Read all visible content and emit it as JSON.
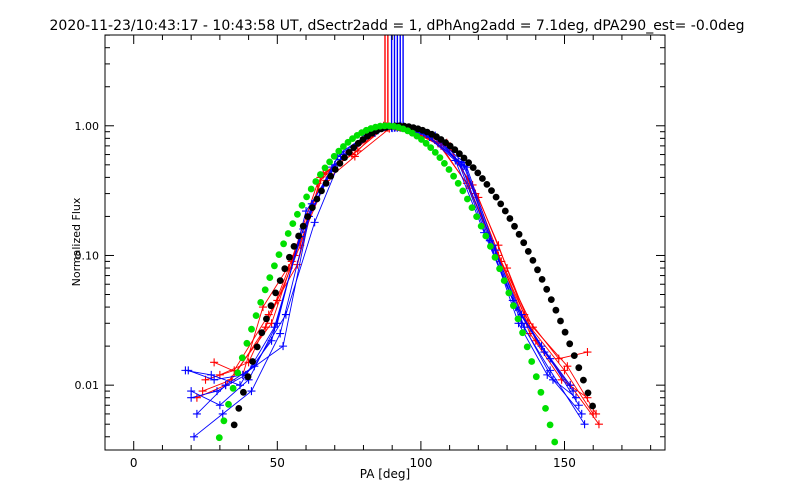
{
  "chart_data": {
    "type": "scatter",
    "title": "2020-11-23/10:43:17 - 10:43:58 UT, dSectr2add = 1, dPhAng2add = 7.1deg, dPA290_est= -0.0deg",
    "xlabel": "PA [deg]",
    "ylabel": "Normalized Flux",
    "xlim": [
      -10,
      185
    ],
    "ylim_log10": [
      -2.5,
      0.7
    ],
    "x_ticks": [
      0,
      50,
      100,
      150
    ],
    "x_tick_labels": [
      "0",
      "50",
      "100",
      "150"
    ],
    "y_ticks": [
      0.01,
      0.1,
      1.0
    ],
    "y_tick_labels": [
      "0.01",
      "0.10",
      "1.00"
    ],
    "grid": false,
    "legend": "none",
    "colors": {
      "red": "#ff0000",
      "blue": "#0000ff",
      "green_fit": "#00e000",
      "black_fit": "#000000"
    },
    "vertical_lines": [
      {
        "x": 87.5,
        "color": "#ff0000"
      },
      {
        "x": 88.5,
        "color": "#ff0000"
      },
      {
        "x": 89.8,
        "color": "#0000ff"
      },
      {
        "x": 90.8,
        "color": "#0000ff"
      },
      {
        "x": 91.8,
        "color": "#0000ff"
      },
      {
        "x": 92.8,
        "color": "#0000ff"
      },
      {
        "x": 93.8,
        "color": "#0000ff"
      }
    ],
    "series": [
      {
        "name": "red-1",
        "color": "#ff0000",
        "x": [
          28,
          38,
          45,
          55,
          66,
          76,
          88,
          98,
          108,
          118,
          127,
          137,
          150,
          160
        ],
        "y": [
          0.015,
          0.012,
          0.04,
          0.09,
          0.42,
          0.6,
          0.99,
          0.88,
          0.72,
          0.35,
          0.12,
          0.03,
          0.013,
          0.006
        ]
      },
      {
        "name": "red-2",
        "color": "#ff0000",
        "x": [
          25,
          35,
          47,
          57,
          65,
          75,
          87,
          97,
          107,
          117,
          127,
          138,
          149,
          158
        ],
        "y": [
          0.011,
          0.013,
          0.035,
          0.085,
          0.4,
          0.62,
          1.0,
          0.9,
          0.7,
          0.33,
          0.1,
          0.025,
          0.011,
          0.008
        ]
      },
      {
        "name": "red-3",
        "color": "#ff0000",
        "x": [
          22,
          32,
          48,
          56,
          67,
          77,
          89,
          99,
          109,
          119,
          128,
          139,
          151,
          161
        ],
        "y": [
          0.008,
          0.01,
          0.03,
          0.1,
          0.38,
          0.58,
          0.95,
          0.86,
          0.74,
          0.3,
          0.09,
          0.028,
          0.014,
          0.006
        ]
      },
      {
        "name": "red-4",
        "color": "#ff0000",
        "x": [
          30,
          40,
          50,
          58,
          66,
          78,
          86,
          96,
          106,
          116,
          126,
          136,
          148,
          158
        ],
        "y": [
          0.012,
          0.015,
          0.045,
          0.12,
          0.43,
          0.64,
          0.98,
          0.92,
          0.73,
          0.36,
          0.11,
          0.035,
          0.016,
          0.018
        ]
      },
      {
        "name": "red-5",
        "color": "#ff0000",
        "x": [
          24,
          34,
          46,
          54,
          64,
          74,
          88,
          98,
          110,
          120,
          130,
          140,
          152,
          162
        ],
        "y": [
          0.009,
          0.011,
          0.028,
          0.08,
          0.36,
          0.6,
          0.97,
          0.87,
          0.68,
          0.28,
          0.08,
          0.022,
          0.01,
          0.005
        ]
      },
      {
        "name": "blue-1",
        "color": "#0000ff",
        "x": [
          19,
          28,
          38,
          52,
          62,
          72,
          84,
          93,
          104,
          115,
          125,
          135,
          145,
          155
        ],
        "y": [
          0.013,
          0.011,
          0.012,
          0.02,
          0.25,
          0.62,
          0.93,
          1.0,
          0.85,
          0.52,
          0.12,
          0.035,
          0.016,
          0.007
        ]
      },
      {
        "name": "blue-2",
        "color": "#0000ff",
        "x": [
          20,
          30,
          40,
          50,
          60,
          73,
          85,
          94,
          105,
          114,
          124,
          134,
          144,
          154
        ],
        "y": [
          0.009,
          0.007,
          0.011,
          0.03,
          0.22,
          0.6,
          0.92,
          0.99,
          0.84,
          0.5,
          0.13,
          0.03,
          0.012,
          0.008
        ]
      },
      {
        "name": "blue-3",
        "color": "#0000ff",
        "x": [
          21,
          31,
          41,
          51,
          61,
          71,
          83,
          92,
          103,
          116,
          126,
          136,
          146,
          156
        ],
        "y": [
          0.004,
          0.006,
          0.009,
          0.025,
          0.2,
          0.58,
          0.9,
          0.98,
          0.82,
          0.48,
          0.11,
          0.028,
          0.011,
          0.006
        ]
      },
      {
        "name": "blue-4",
        "color": "#0000ff",
        "x": [
          22,
          32,
          42,
          53,
          63,
          72,
          84,
          91,
          102,
          113,
          123,
          133,
          143,
          153
        ],
        "y": [
          0.006,
          0.01,
          0.014,
          0.035,
          0.18,
          0.55,
          0.88,
          0.97,
          0.86,
          0.53,
          0.14,
          0.04,
          0.018,
          0.009
        ]
      },
      {
        "name": "blue-5",
        "color": "#0000ff",
        "x": [
          18,
          27,
          37,
          49,
          59,
          70,
          82,
          90,
          101,
          112,
          122,
          132,
          142,
          152
        ],
        "y": [
          0.013,
          0.012,
          0.01,
          0.028,
          0.16,
          0.5,
          0.86,
          0.96,
          0.87,
          0.54,
          0.15,
          0.045,
          0.02,
          0.01
        ]
      },
      {
        "name": "blue-6",
        "color": "#0000ff",
        "x": [
          20,
          29,
          39,
          48,
          58,
          69,
          81,
          93,
          104,
          115,
          125,
          135,
          145,
          157
        ],
        "y": [
          0.008,
          0.009,
          0.012,
          0.022,
          0.14,
          0.48,
          0.84,
          1.0,
          0.83,
          0.49,
          0.12,
          0.03,
          0.013,
          0.005
        ]
      }
    ],
    "fits": [
      {
        "name": "green-gaussian-fit",
        "color": "#00e000",
        "peak_x": 88,
        "peak_y": 1.0,
        "log10_drop_per_deg2": 0.00071,
        "x_range": [
          25,
          148
        ]
      },
      {
        "name": "black-gaussian-fit",
        "color": "#000000",
        "peak_x": 92,
        "peak_y": 1.0,
        "log10_drop_left_per_deg2": 0.00071,
        "log10_drop_right_per_deg2": 0.00047,
        "x_range": [
          35,
          160
        ]
      }
    ]
  }
}
